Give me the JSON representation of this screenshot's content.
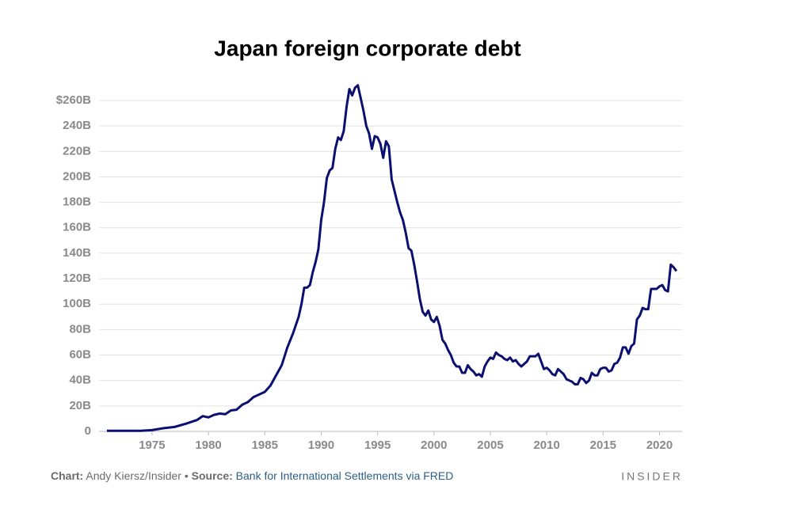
{
  "chart_data": {
    "type": "line",
    "title": "Japan foreign corporate debt",
    "footer": {
      "chart_label": "Chart:",
      "chart_credit": "Andy Kiersz/Insider •",
      "source_label": "Source:",
      "source": "Bank for International Settlements via FRED",
      "brand": "INSIDER"
    },
    "xlim": [
      1970.3,
      2022
    ],
    "xticks": [
      1975,
      1980,
      1985,
      1990,
      1995,
      2000,
      2005,
      2010,
      2015,
      2020
    ],
    "ylim": [
      0,
      260
    ],
    "yticks": [
      0,
      {
        "value": 20,
        "label": "20B"
      },
      {
        "value": 40,
        "label": "40B"
      },
      {
        "value": 60,
        "label": "60B"
      },
      {
        "value": 80,
        "label": "80B"
      },
      {
        "value": 100,
        "label": "100B"
      },
      {
        "value": 120,
        "label": "120B"
      },
      {
        "value": 140,
        "label": "140B"
      },
      {
        "value": 160,
        "label": "160B"
      },
      {
        "value": 180,
        "label": "180B"
      },
      {
        "value": 200,
        "label": "200B"
      },
      {
        "value": 220,
        "label": "220B"
      },
      {
        "value": 240,
        "label": "240B"
      },
      {
        "value": 260,
        "label": "$260B"
      }
    ],
    "grid": true,
    "series": [
      {
        "name": "Japan foreign corporate debt",
        "color": "#0b0f70",
        "x": [
          1971,
          1974,
          1975,
          1976,
          1977,
          1978,
          1979,
          1979.5,
          1980,
          1980.5,
          1981,
          1981.5,
          1982,
          1982.5,
          1983,
          1983.5,
          1984,
          1984.5,
          1985,
          1985.5,
          1986,
          1986.5,
          1987,
          1987.5,
          1988,
          1988.25,
          1988.5,
          1988.75,
          1989,
          1989.25,
          1989.5,
          1989.75,
          1990,
          1990.25,
          1990.5,
          1990.75,
          1991,
          1991.25,
          1991.5,
          1991.75,
          1992,
          1992.25,
          1992.5,
          1992.75,
          1993,
          1993.25,
          1993.5,
          1993.75,
          1994,
          1994.25,
          1994.5,
          1994.75,
          1995,
          1995.25,
          1995.5,
          1995.75,
          1996,
          1996.25,
          1996.5,
          1996.75,
          1997,
          1997.25,
          1997.5,
          1997.75,
          1998,
          1998.25,
          1998.5,
          1998.75,
          1999,
          1999.25,
          1999.5,
          1999.75,
          2000,
          2000.25,
          2000.5,
          2000.75,
          2001,
          2001.25,
          2001.5,
          2001.75,
          2002,
          2002.25,
          2002.5,
          2002.75,
          2003,
          2003.25,
          2003.5,
          2003.75,
          2004,
          2004.25,
          2004.5,
          2004.75,
          2005,
          2005.25,
          2005.5,
          2005.75,
          2006,
          2006.25,
          2006.5,
          2006.75,
          2007,
          2007.25,
          2007.5,
          2007.75,
          2008,
          2008.25,
          2008.5,
          2008.75,
          2009,
          2009.25,
          2009.5,
          2009.75,
          2010,
          2010.25,
          2010.5,
          2010.75,
          2011,
          2011.25,
          2011.5,
          2011.75,
          2012,
          2012.25,
          2012.5,
          2012.75,
          2013,
          2013.25,
          2013.5,
          2013.75,
          2014,
          2014.25,
          2014.5,
          2014.75,
          2015,
          2015.25,
          2015.5,
          2015.75,
          2016,
          2016.25,
          2016.5,
          2016.75,
          2017,
          2017.25,
          2017.5,
          2017.75,
          2018,
          2018.25,
          2018.5,
          2018.75,
          2019,
          2019.25,
          2019.5,
          2019.75,
          2020,
          2020.25,
          2020.5,
          2020.75,
          2021,
          2021.25,
          2021.5
        ],
        "values": [
          0.5,
          0.5,
          1,
          2.5,
          3.5,
          6,
          9,
          12,
          11,
          13,
          14,
          13.5,
          16.5,
          17,
          21,
          23,
          27,
          29,
          31,
          36,
          44,
          52,
          66,
          77,
          90,
          100,
          113,
          113,
          115,
          125,
          133,
          143,
          166,
          180,
          199,
          205,
          207,
          222,
          231,
          229,
          236,
          255,
          269,
          264,
          270,
          272,
          262,
          252,
          240,
          234,
          222,
          232,
          231,
          226,
          215,
          228,
          224,
          198,
          189,
          180,
          172,
          166,
          156,
          144,
          142,
          131,
          118,
          104,
          94,
          91,
          95,
          88,
          86,
          90,
          83,
          72,
          69,
          64,
          60,
          54,
          51,
          51,
          46,
          46,
          52,
          49,
          47,
          44,
          45,
          43,
          51,
          55,
          58,
          57,
          62,
          60,
          59,
          57,
          56,
          58,
          55,
          56,
          53,
          51,
          53,
          55,
          59,
          59,
          59,
          61,
          55,
          49,
          50,
          48,
          45,
          44,
          49,
          47,
          45,
          41,
          40,
          39,
          37,
          37,
          42,
          41,
          38,
          40,
          46,
          44,
          44,
          49,
          50,
          50,
          47,
          48,
          53,
          54,
          58,
          66,
          66,
          61,
          67,
          69,
          88,
          91,
          97,
          96,
          96,
          112,
          112,
          112,
          114,
          115,
          111,
          110,
          131,
          129,
          126
        ]
      }
    ]
  }
}
